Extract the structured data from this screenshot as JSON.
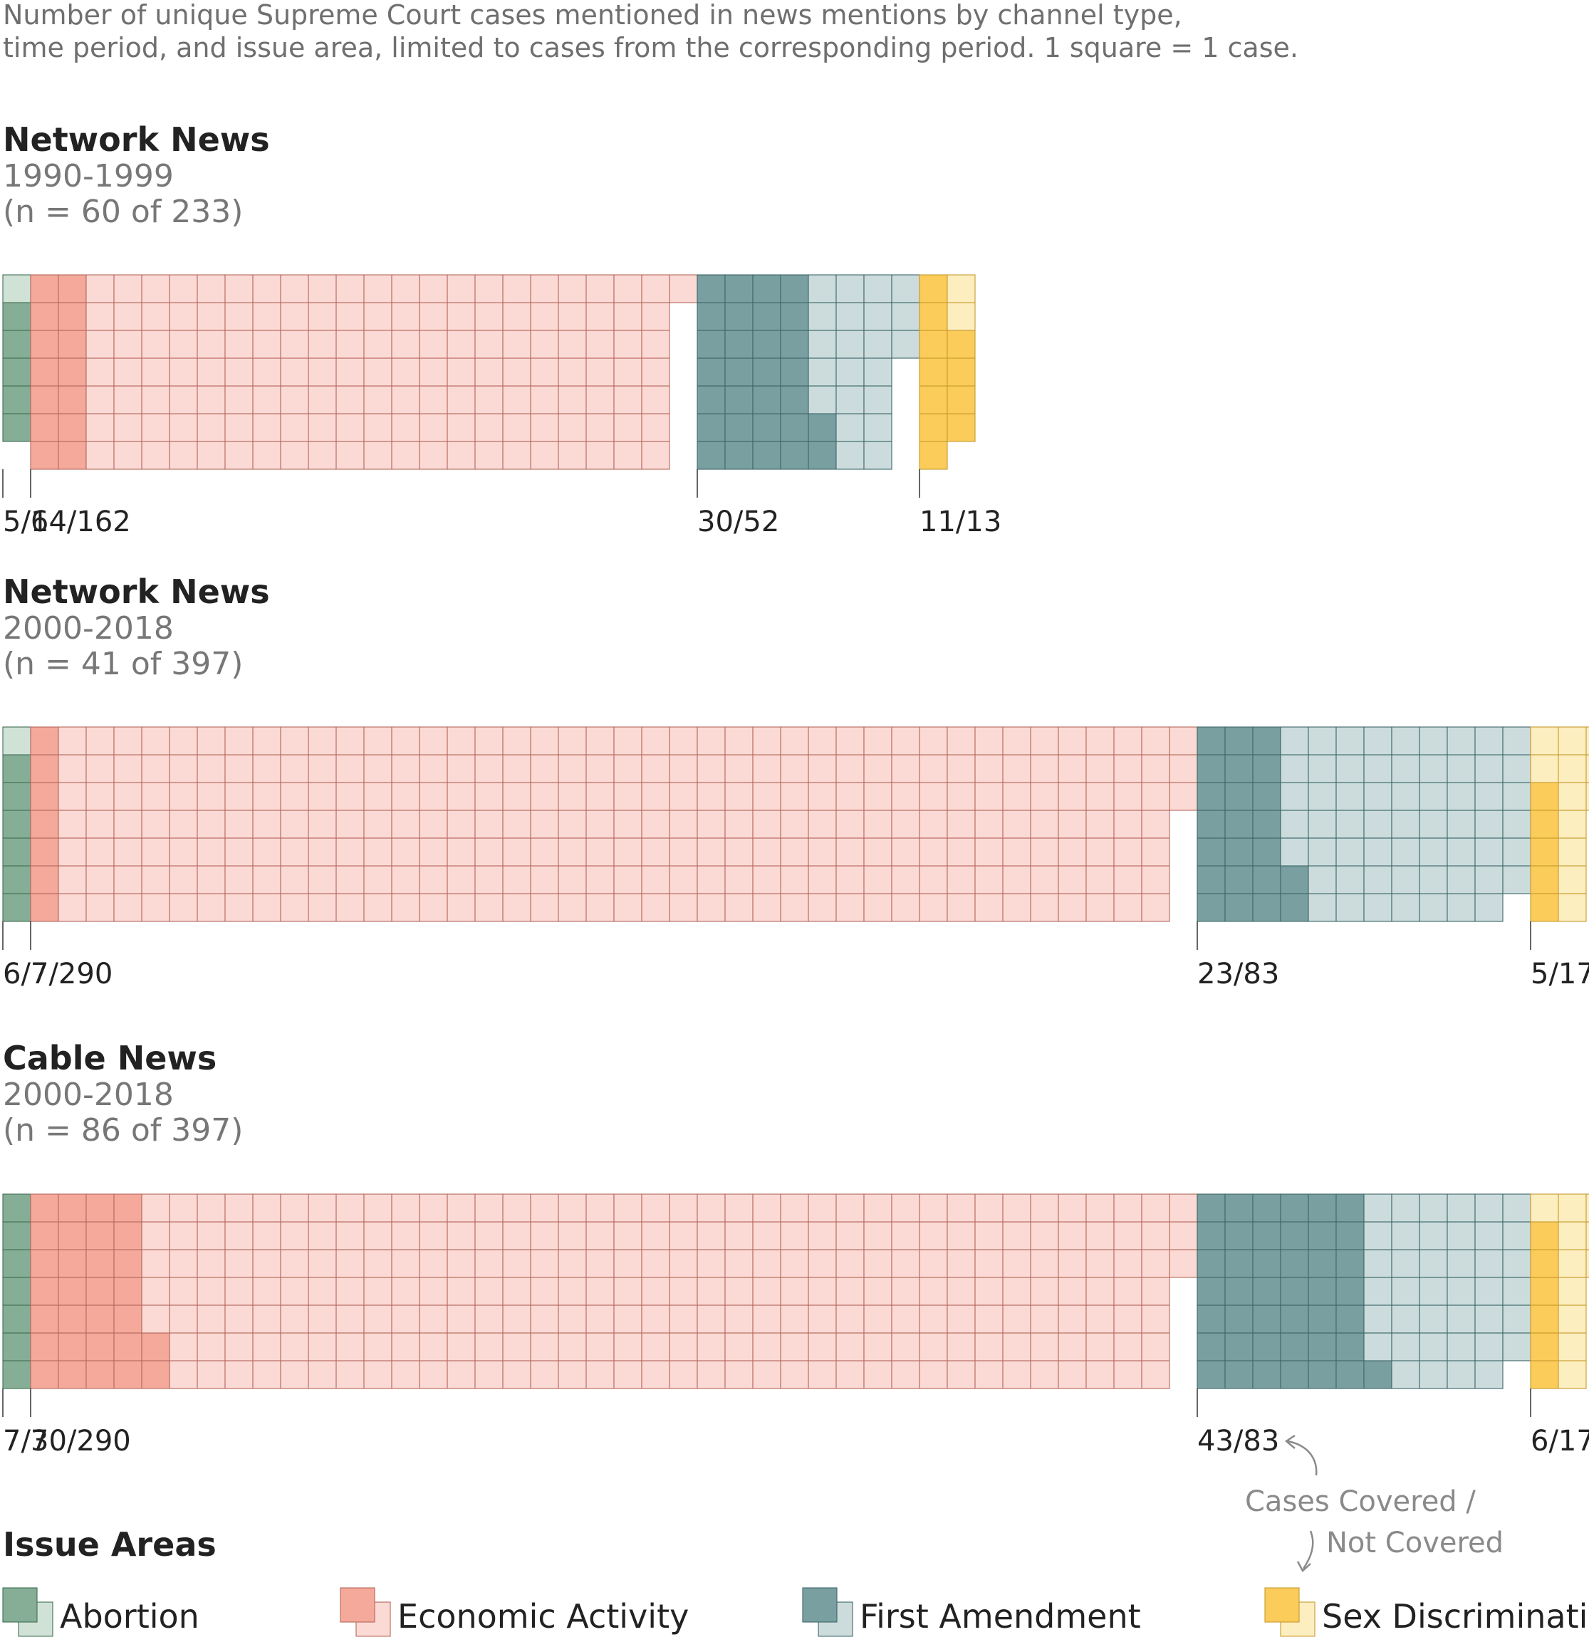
{
  "subtitle_lines": [
    "Number of unique Supreme Court cases mentioned in news mentions by channel type,",
    "time period, and issue area, limited to cases from the corresponding period. 1 square = 1 case."
  ],
  "legend": {
    "title": "Issue Areas",
    "annotation_lines": [
      "Cases Covered /",
      "Not Covered"
    ]
  },
  "colors": {
    "abortion": {
      "covered": "#86ae96",
      "uncovered": "#d0e2d6",
      "stroke": "#3f6e52"
    },
    "economic": {
      "covered": "#f4a99b",
      "uncovered": "#fbdad5",
      "stroke": "#b5675c"
    },
    "first_amendment": {
      "covered": "#7a9fa1",
      "uncovered": "#ccdcdc",
      "stroke": "#3c6669"
    },
    "sex_discrimination": {
      "covered": "#fccc5b",
      "uncovered": "#fdeec0",
      "stroke": "#c69a2c"
    }
  },
  "chart_data": {
    "type": "waffle",
    "unit": "1 square = 1 case",
    "categories": [
      "Abortion",
      "Economic Activity",
      "First Amendment",
      "Sex Discrimination"
    ],
    "panels": [
      {
        "title": "Network News",
        "period": "1990-1999",
        "n_label": "(n = 60 of 233)",
        "groups": [
          {
            "category": "Abortion",
            "covered": 5,
            "total": 6,
            "label": "5/6"
          },
          {
            "category": "Economic Activity",
            "covered": 14,
            "total": 162,
            "label": "14/162"
          },
          {
            "category": "First Amendment",
            "covered": 30,
            "total": 52,
            "label": "30/52"
          },
          {
            "category": "Sex Discrimination",
            "covered": 11,
            "total": 13,
            "label": "11/13"
          }
        ]
      },
      {
        "title": "Network News",
        "period": "2000-2018",
        "n_label": "(n = 41 of 397)",
        "groups": [
          {
            "category": "Abortion",
            "covered": 6,
            "total": 7,
            "label": "6/7"
          },
          {
            "category": "Economic Activity",
            "covered": 7,
            "total": 290,
            "label": "7/290"
          },
          {
            "category": "First Amendment",
            "covered": 23,
            "total": 83,
            "label": "23/83"
          },
          {
            "category": "Sex Discrimination",
            "covered": 5,
            "total": 17,
            "label": "5/17"
          }
        ]
      },
      {
        "title": "Cable News",
        "period": "2000-2018",
        "n_label": "(n = 86 of 397)",
        "groups": [
          {
            "category": "Abortion",
            "covered": 7,
            "total": 7,
            "label": "7/7"
          },
          {
            "category": "Economic Activity",
            "covered": 30,
            "total": 290,
            "label": "30/290"
          },
          {
            "category": "First Amendment",
            "covered": 43,
            "total": 83,
            "label": "43/83"
          },
          {
            "category": "Sex Discrimination",
            "covered": 6,
            "total": 17,
            "label": "6/17"
          }
        ]
      }
    ]
  }
}
